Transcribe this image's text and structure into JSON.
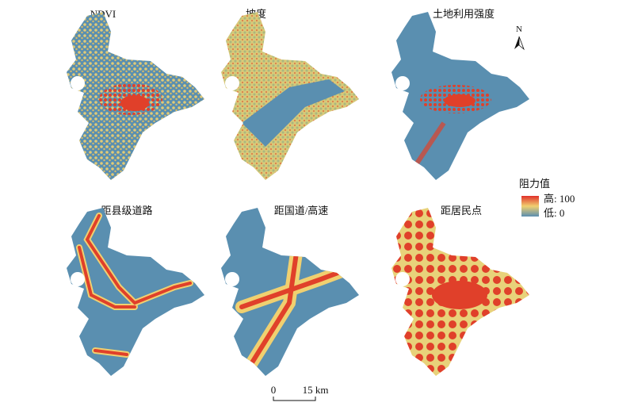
{
  "panels": [
    {
      "title": "NDVI"
    },
    {
      "title": "坡度"
    },
    {
      "title": "土地利用强度"
    },
    {
      "title": "距县级道路"
    },
    {
      "title": "距国道/高速"
    },
    {
      "title": "距居民点"
    }
  ],
  "legend": {
    "title": "阻力值",
    "high": "高: 100",
    "low": "低: 0"
  },
  "north": "N",
  "scale": {
    "start": "0",
    "end": "15 km"
  }
}
